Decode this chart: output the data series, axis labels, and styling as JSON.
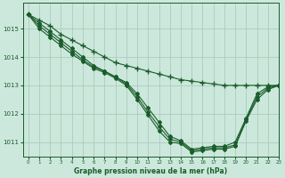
{
  "background_color": "#cce8dc",
  "grid_color": "#aaccbb",
  "line_color": "#1a5c2a",
  "title": "Graphe pression niveau de la mer (hPa)",
  "xlim": [
    -0.5,
    23
  ],
  "ylim": [
    1010.5,
    1015.9
  ],
  "yticks": [
    1011,
    1012,
    1013,
    1014,
    1015
  ],
  "xticks": [
    0,
    1,
    2,
    3,
    4,
    5,
    6,
    7,
    8,
    9,
    10,
    11,
    12,
    13,
    14,
    15,
    16,
    17,
    18,
    19,
    20,
    21,
    22,
    23
  ],
  "series": [
    {
      "x": [
        0,
        1,
        2,
        3,
        4,
        5,
        6,
        7,
        8,
        9,
        10,
        11,
        12,
        13,
        14,
        15,
        16,
        17,
        18,
        19,
        20,
        21,
        22,
        23
      ],
      "y": [
        1015.5,
        1015.3,
        1015.1,
        1014.8,
        1014.6,
        1014.4,
        1014.2,
        1014.0,
        1013.8,
        1013.7,
        1013.6,
        1013.5,
        1013.4,
        1013.3,
        1013.2,
        1013.15,
        1013.1,
        1013.05,
        1013.0,
        1013.0,
        1013.0,
        1013.0,
        1013.0,
        1013.0
      ]
    },
    {
      "x": [
        0,
        1,
        2,
        3,
        4,
        5,
        6,
        7,
        8,
        9,
        10,
        11,
        12,
        13,
        14,
        15,
        16,
        17,
        18,
        19,
        20,
        21,
        22,
        23
      ],
      "y": [
        1015.5,
        1015.2,
        1014.9,
        1014.6,
        1014.3,
        1014.0,
        1013.7,
        1013.5,
        1013.3,
        1013.1,
        1012.7,
        1012.2,
        1011.7,
        1011.2,
        1011.05,
        1010.75,
        1010.8,
        1010.85,
        1010.85,
        1011.0,
        1011.85,
        1012.7,
        1012.95,
        1013.0
      ]
    },
    {
      "x": [
        0,
        1,
        2,
        3,
        4,
        5,
        6,
        7,
        8,
        9,
        10,
        11,
        12,
        13,
        14,
        15,
        16,
        17,
        18,
        19,
        20,
        21,
        22,
        23
      ],
      "y": [
        1015.5,
        1015.1,
        1014.8,
        1014.5,
        1014.2,
        1013.9,
        1013.65,
        1013.5,
        1013.3,
        1013.05,
        1012.6,
        1012.05,
        1011.55,
        1011.1,
        1011.0,
        1010.7,
        1010.75,
        1010.8,
        1010.8,
        1010.9,
        1011.8,
        1012.6,
        1012.9,
        1013.0
      ]
    },
    {
      "x": [
        0,
        1,
        2,
        3,
        4,
        5,
        6,
        7,
        8,
        9,
        10,
        11,
        12,
        13,
        14,
        15,
        16,
        17,
        18,
        19,
        20,
        21,
        22,
        23
      ],
      "y": [
        1015.5,
        1015.0,
        1014.7,
        1014.4,
        1014.1,
        1013.85,
        1013.6,
        1013.45,
        1013.25,
        1013.0,
        1012.5,
        1011.95,
        1011.4,
        1011.0,
        1010.95,
        1010.65,
        1010.7,
        1010.75,
        1010.75,
        1010.85,
        1011.75,
        1012.5,
        1012.85,
        1013.0
      ]
    }
  ]
}
